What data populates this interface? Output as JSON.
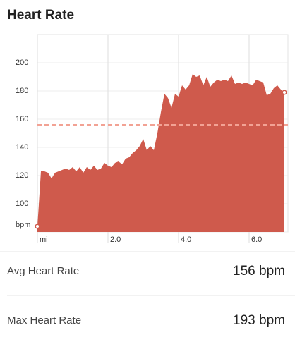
{
  "header": {
    "title": "Heart Rate"
  },
  "chart_data": {
    "type": "area",
    "x": [
      0,
      0.1,
      0.2,
      0.3,
      0.4,
      0.5,
      0.6,
      0.7,
      0.8,
      0.9,
      1.0,
      1.1,
      1.2,
      1.3,
      1.4,
      1.5,
      1.6,
      1.7,
      1.8,
      1.9,
      2.0,
      2.1,
      2.2,
      2.3,
      2.4,
      2.5,
      2.6,
      2.7,
      2.8,
      2.9,
      3.0,
      3.1,
      3.2,
      3.3,
      3.4,
      3.5,
      3.6,
      3.7,
      3.8,
      3.9,
      4.0,
      4.1,
      4.2,
      4.3,
      4.4,
      4.5,
      4.6,
      4.7,
      4.8,
      4.9,
      5.0,
      5.1,
      5.2,
      5.3,
      5.4,
      5.5,
      5.6,
      5.7,
      5.8,
      5.9,
      6.0,
      6.1,
      6.2,
      6.3,
      6.4,
      6.5,
      6.6,
      6.7,
      6.8,
      6.9,
      7.0
    ],
    "series": [
      {
        "color": "#cf5a4c",
        "values": [
          84,
          123,
          123,
          122,
          118,
          122,
          123,
          124,
          125,
          124,
          126,
          123,
          126,
          122,
          126,
          124,
          127,
          124,
          125,
          129,
          127,
          126,
          129,
          130,
          128,
          132,
          133,
          136,
          138,
          141,
          146,
          138,
          141,
          138,
          150,
          165,
          178,
          175,
          168,
          178,
          176,
          184,
          181,
          184,
          192,
          190,
          191,
          184,
          190,
          183,
          186,
          188,
          187,
          188,
          187,
          191,
          185,
          186,
          185,
          186,
          185,
          184,
          188,
          187,
          186,
          177,
          178,
          182,
          184,
          181,
          179
        ]
      }
    ],
    "average": 156,
    "average_color": "#f2a294",
    "xlim": [
      0,
      7.1
    ],
    "ylim": [
      80,
      220
    ],
    "xticks": [
      {
        "value": 0,
        "label": "mi"
      },
      {
        "value": 2,
        "label": "2.0"
      },
      {
        "value": 4,
        "label": "4.0"
      },
      {
        "value": 6,
        "label": "6.0"
      }
    ],
    "yticks": [
      {
        "value": 80,
        "label": "bpm"
      },
      100,
      120,
      140,
      160,
      180,
      200
    ],
    "grid": true
  },
  "stats": [
    {
      "label": "Avg Heart Rate",
      "value": "156 bpm"
    },
    {
      "label": "Max Heart Rate",
      "value": "193 bpm"
    }
  ]
}
